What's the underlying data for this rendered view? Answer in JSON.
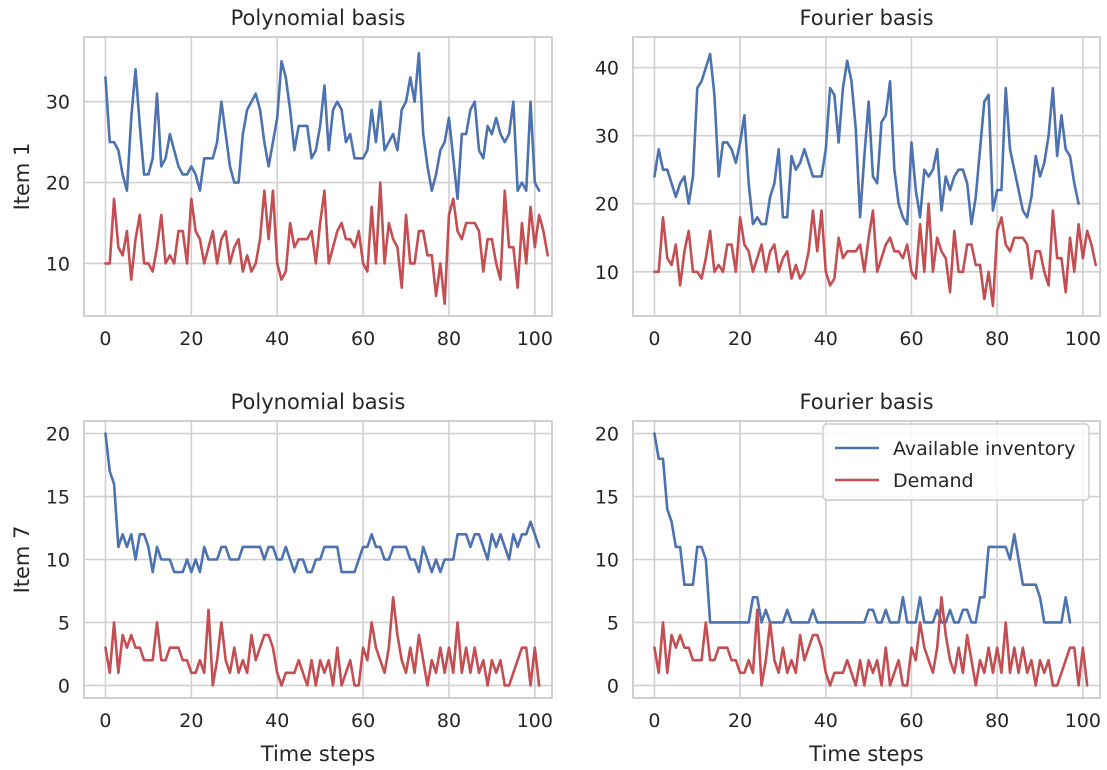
{
  "chart_data": [
    {
      "type": "line",
      "title": "Polynomial basis",
      "ylabel": "Item 1",
      "xlabel": "",
      "xlim": [
        -5,
        104
      ],
      "ylim": [
        3.5,
        38
      ],
      "xticks": [
        0,
        20,
        40,
        60,
        80,
        100
      ],
      "yticks": [
        10,
        20,
        30
      ],
      "grid": true,
      "series": [
        {
          "name": "Available inventory",
          "color": "#4c72b0",
          "values": [
            33,
            25,
            25,
            24,
            21,
            19,
            28,
            34,
            27,
            21,
            21,
            23,
            31,
            22,
            23,
            26,
            24,
            22,
            21,
            21,
            22,
            21,
            19,
            23,
            23,
            23,
            25,
            30,
            26,
            22,
            20,
            20,
            26,
            29,
            30,
            31,
            29,
            25,
            22,
            25,
            28,
            35,
            33,
            29,
            24,
            27,
            27,
            27,
            23,
            24,
            27,
            32,
            24,
            29,
            30,
            29,
            25,
            26,
            23,
            23,
            23,
            24,
            29,
            25,
            30,
            24,
            25,
            26,
            24,
            29,
            30,
            33,
            30,
            36,
            26,
            22,
            19,
            21,
            24,
            25,
            28,
            23,
            18,
            26,
            26,
            29,
            30,
            24,
            23,
            27,
            26,
            28,
            26,
            25,
            26,
            30,
            19,
            20,
            19,
            30,
            20,
            19
          ]
        },
        {
          "name": "Demand",
          "color": "#c44e52",
          "values": [
            10,
            10,
            18,
            12,
            11,
            14,
            8,
            13,
            16,
            10,
            10,
            9,
            12,
            16,
            10,
            11,
            10,
            14,
            14,
            10,
            18,
            14,
            13,
            10,
            12,
            14,
            10,
            13,
            14,
            10,
            12,
            13,
            9,
            11,
            9,
            10,
            13,
            19,
            13,
            19,
            10,
            8,
            9,
            15,
            12,
            13,
            13,
            13,
            14,
            10,
            15,
            19,
            10,
            12,
            14,
            15,
            13,
            13,
            12,
            14,
            10,
            9,
            17,
            10,
            20,
            10,
            15,
            13,
            12,
            7,
            16,
            10,
            10,
            14,
            14,
            11,
            11,
            6,
            10,
            5,
            16,
            18,
            14,
            13,
            15,
            15,
            15,
            14,
            9,
            13,
            13,
            10,
            8,
            19,
            12,
            12,
            7,
            15,
            10,
            17,
            12,
            16,
            14,
            11
          ]
        }
      ]
    },
    {
      "type": "line",
      "title": "Fourier basis",
      "ylabel": "",
      "xlabel": "",
      "xlim": [
        -5,
        104
      ],
      "ylim": [
        3.5,
        44.5
      ],
      "xticks": [
        0,
        20,
        40,
        60,
        80,
        100
      ],
      "yticks": [
        10,
        20,
        30,
        40
      ],
      "grid": true,
      "series": [
        {
          "name": "Available inventory",
          "color": "#4c72b0",
          "values": [
            24,
            28,
            25,
            25,
            23,
            21,
            23,
            24,
            20,
            24,
            37,
            38,
            40,
            42,
            36,
            24,
            29,
            29,
            28,
            26,
            29,
            33,
            23,
            17,
            18,
            17,
            17,
            21,
            23,
            28,
            18,
            18,
            27,
            25,
            26,
            28,
            26,
            24,
            24,
            24,
            28,
            37,
            36,
            29,
            37,
            41,
            38,
            31,
            18,
            27,
            35,
            24,
            23,
            32,
            33,
            38,
            25,
            20,
            18,
            17,
            29,
            22,
            18,
            25,
            24,
            25,
            28,
            19,
            24,
            22,
            24,
            25,
            25,
            23,
            17,
            21,
            28,
            35,
            36,
            19,
            22,
            22,
            37,
            28,
            25,
            22,
            19,
            18,
            21,
            27,
            24,
            26,
            30,
            37,
            27,
            33,
            28,
            27,
            23,
            20
          ]
        },
        {
          "name": "Demand",
          "color": "#c44e52",
          "values": [
            10,
            10,
            18,
            12,
            11,
            14,
            8,
            13,
            16,
            10,
            10,
            9,
            12,
            16,
            10,
            11,
            10,
            14,
            14,
            10,
            18,
            14,
            13,
            10,
            12,
            14,
            10,
            13,
            14,
            10,
            12,
            13,
            9,
            11,
            9,
            10,
            13,
            19,
            13,
            19,
            10,
            8,
            9,
            15,
            12,
            13,
            13,
            13,
            14,
            10,
            15,
            19,
            10,
            12,
            14,
            15,
            13,
            13,
            12,
            14,
            10,
            9,
            17,
            10,
            20,
            10,
            15,
            13,
            12,
            7,
            16,
            10,
            10,
            14,
            14,
            11,
            11,
            6,
            10,
            5,
            16,
            18,
            14,
            13,
            15,
            15,
            15,
            14,
            9,
            13,
            13,
            10,
            8,
            19,
            12,
            12,
            7,
            15,
            10,
            17,
            12,
            16,
            14,
            11
          ]
        }
      ]
    },
    {
      "type": "line",
      "title": "Polynomial basis",
      "ylabel": "Item 7",
      "xlabel": "Time steps",
      "xlim": [
        -5,
        104
      ],
      "ylim": [
        -1,
        21
      ],
      "xticks": [
        0,
        20,
        40,
        60,
        80,
        100
      ],
      "yticks": [
        0,
        5,
        10,
        15,
        20
      ],
      "grid": true,
      "series": [
        {
          "name": "Available inventory",
          "color": "#4c72b0",
          "values": [
            20,
            17,
            16,
            11,
            12,
            11,
            12,
            10,
            12,
            12,
            11,
            9,
            11,
            10,
            10,
            10,
            9,
            9,
            9,
            10,
            9,
            10,
            9,
            11,
            10,
            10,
            10,
            11,
            11,
            10,
            10,
            10,
            11,
            11,
            11,
            11,
            11,
            10,
            11,
            11,
            10,
            10,
            11,
            10,
            9,
            10,
            10,
            9,
            9,
            10,
            10,
            11,
            11,
            11,
            11,
            9,
            9,
            9,
            9,
            10,
            11,
            11,
            12,
            11,
            11,
            10,
            10,
            11,
            11,
            11,
            11,
            10,
            10,
            9,
            11,
            10,
            9,
            10,
            9,
            10,
            10,
            10,
            12,
            12,
            12,
            11,
            12,
            12,
            11,
            10,
            12,
            11,
            12,
            11,
            10,
            12,
            11,
            12,
            12,
            13,
            12,
            11
          ]
        },
        {
          "name": "Demand",
          "color": "#c44e52",
          "values": [
            3,
            1,
            5,
            1,
            4,
            3,
            4,
            3,
            3,
            2,
            2,
            2,
            5,
            2,
            2,
            3,
            3,
            3,
            2,
            2,
            1,
            1,
            2,
            1,
            6,
            0,
            2,
            5,
            2,
            1,
            3,
            1,
            2,
            1,
            4,
            2,
            3,
            4,
            4,
            3,
            1,
            0,
            1,
            1,
            1,
            2,
            1,
            0,
            2,
            0,
            2,
            1,
            2,
            0,
            3,
            0,
            1,
            2,
            0,
            0,
            3,
            2,
            5,
            3,
            2,
            1,
            3,
            7,
            4,
            2,
            1,
            3,
            1,
            4,
            2,
            0,
            2,
            1,
            3,
            1,
            3,
            1,
            5,
            1,
            3,
            1,
            3,
            1,
            2,
            0,
            2,
            1,
            2,
            0,
            0,
            1,
            2,
            3,
            3,
            0,
            3,
            0
          ]
        }
      ]
    },
    {
      "type": "line",
      "title": "Fourier basis",
      "ylabel": "",
      "xlabel": "Time steps",
      "xlim": [
        -5,
        104
      ],
      "ylim": [
        -1,
        21
      ],
      "xticks": [
        0,
        20,
        40,
        60,
        80,
        100
      ],
      "yticks": [
        0,
        5,
        10,
        15,
        20
      ],
      "grid": true,
      "legend": {
        "position": "top-right",
        "entries": [
          "Available inventory",
          "Demand"
        ]
      },
      "series": [
        {
          "name": "Available inventory",
          "color": "#4c72b0",
          "values": [
            20,
            18,
            18,
            14,
            13,
            11,
            11,
            8,
            8,
            8,
            11,
            11,
            10,
            5,
            5,
            5,
            5,
            5,
            5,
            5,
            5,
            5,
            5,
            7,
            7,
            5,
            6,
            5,
            5,
            5,
            5,
            6,
            5,
            5,
            5,
            5,
            5,
            6,
            5,
            5,
            5,
            5,
            5,
            5,
            5,
            5,
            5,
            5,
            5,
            5,
            6,
            6,
            5,
            5,
            6,
            5,
            5,
            5,
            7,
            5,
            5,
            5,
            7,
            5,
            5,
            5,
            6,
            5,
            5,
            6,
            5,
            5,
            6,
            6,
            5,
            5,
            7,
            7,
            11,
            11,
            11,
            11,
            11,
            10,
            12,
            10,
            8,
            8,
            8,
            8,
            7,
            5,
            5,
            5,
            5,
            5,
            7,
            5
          ]
        },
        {
          "name": "Demand",
          "color": "#c44e52",
          "values": [
            3,
            1,
            5,
            1,
            4,
            3,
            4,
            3,
            3,
            2,
            2,
            2,
            5,
            2,
            2,
            3,
            3,
            3,
            2,
            2,
            1,
            1,
            2,
            1,
            6,
            0,
            2,
            5,
            2,
            1,
            3,
            1,
            2,
            1,
            4,
            2,
            3,
            4,
            4,
            3,
            1,
            0,
            1,
            1,
            1,
            2,
            1,
            0,
            2,
            0,
            2,
            1,
            2,
            0,
            3,
            0,
            1,
            2,
            0,
            0,
            3,
            2,
            5,
            3,
            2,
            1,
            3,
            7,
            4,
            2,
            1,
            3,
            1,
            4,
            2,
            0,
            2,
            1,
            3,
            1,
            3,
            1,
            5,
            1,
            3,
            1,
            3,
            1,
            2,
            0,
            2,
            1,
            2,
            0,
            0,
            1,
            2,
            3,
            3,
            0,
            3,
            0
          ]
        }
      ]
    }
  ],
  "colors": {
    "grid": "#d0d0d0",
    "axes": "#cccccc",
    "inventory": "#4c72b0",
    "demand": "#c44e52"
  }
}
